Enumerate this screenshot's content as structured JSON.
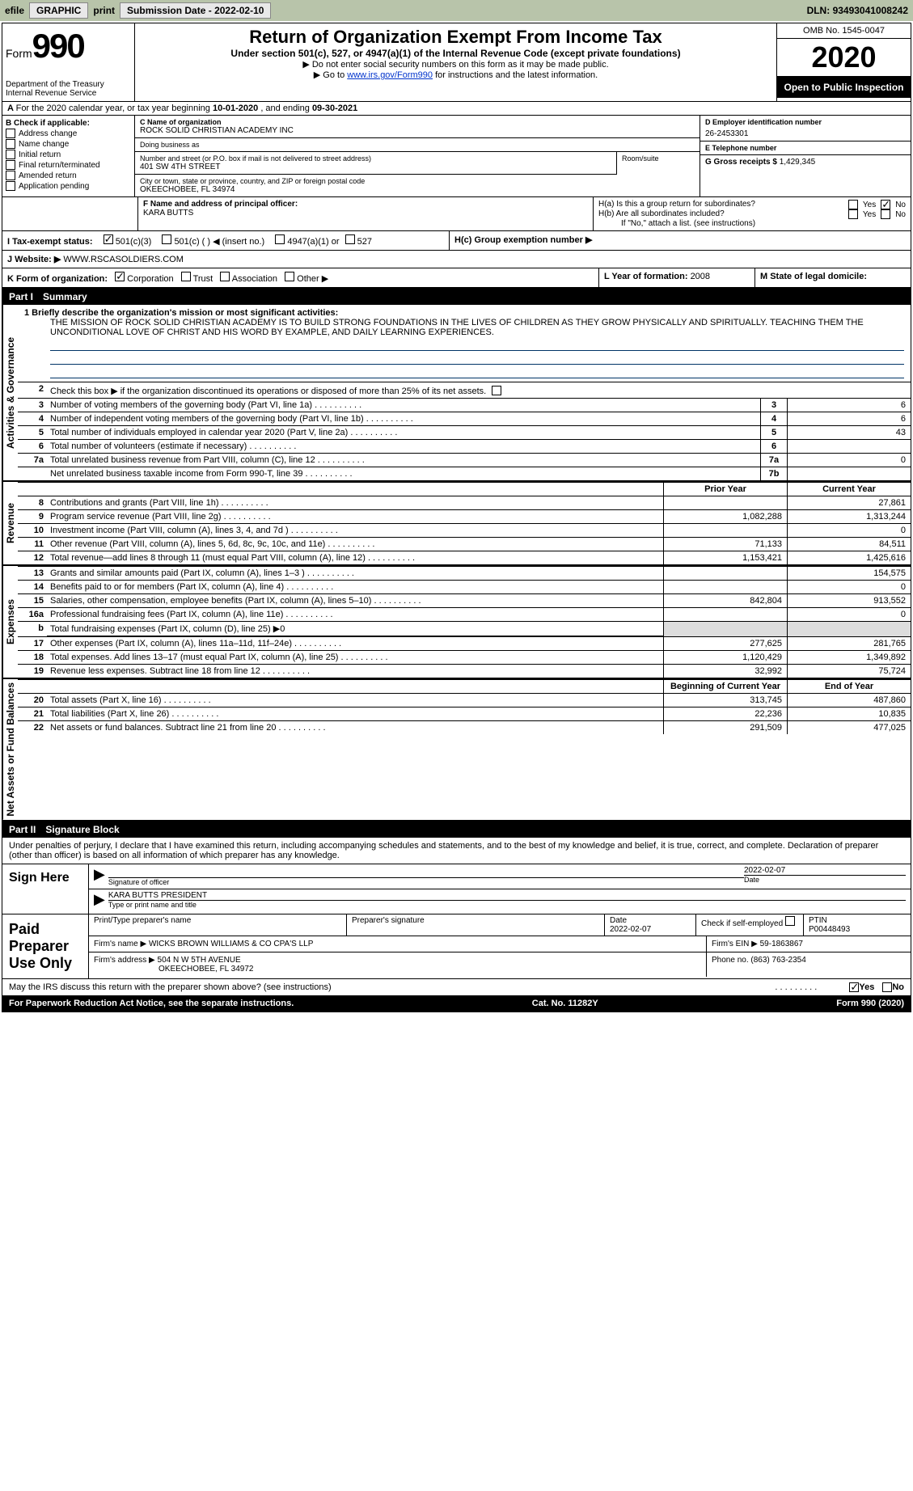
{
  "topbar": {
    "efile": "efile",
    "graphic": "GRAPHIC",
    "print": "print",
    "subdate_label": "Submission Date - ",
    "subdate": "2022-02-10",
    "dln_label": "DLN: ",
    "dln": "93493041008242"
  },
  "header": {
    "form": "Form",
    "num": "990",
    "dept1": "Department of the Treasury",
    "dept2": "Internal Revenue Service",
    "title": "Return of Organization Exempt From Income Tax",
    "sub1": "Under section 501(c), 527, or 4947(a)(1) of the Internal Revenue Code (except private foundations)",
    "sub2": "Do not enter social security numbers on this form as it may be made public.",
    "sub3_pre": "Go to ",
    "sub3_link": "www.irs.gov/Form990",
    "sub3_post": " for instructions and the latest information.",
    "omb": "OMB No. 1545-0047",
    "year": "2020",
    "open": "Open to Public Inspection"
  },
  "sectionA": {
    "text_pre": "For the 2020 calendar year, or tax year beginning ",
    "begin": "10-01-2020",
    "mid": " , and ending ",
    "end": "09-30-2021"
  },
  "boxB": {
    "label": "B Check if applicable:",
    "items": [
      "Address change",
      "Name change",
      "Initial return",
      "Final return/terminated",
      "Amended return",
      "Application pending"
    ]
  },
  "boxC": {
    "name_label": "C Name of organization",
    "name": "ROCK SOLID CHRISTIAN ACADEMY INC",
    "dba_label": "Doing business as",
    "dba": "",
    "addr_label": "Number and street (or P.O. box if mail is not delivered to street address)",
    "addr": "401 SW 4TH STREET",
    "room_label": "Room/suite",
    "city_label": "City or town, state or province, country, and ZIP or foreign postal code",
    "city": "OKEECHOBEE, FL  34974"
  },
  "boxD": {
    "label": "D Employer identification number",
    "val": "26-2453301"
  },
  "boxE": {
    "label": "E Telephone number",
    "val": ""
  },
  "boxG": {
    "label": "G Gross receipts $",
    "val": "1,429,345"
  },
  "boxF": {
    "label": "F  Name and address of principal officer:",
    "name": "KARA BUTTS"
  },
  "boxH": {
    "ha": "H(a)  Is this a group return for subordinates?",
    "hb": "H(b)  Are all subordinates included?",
    "hb_note": "If \"No,\" attach a list. (see instructions)",
    "hc": "H(c)  Group exemption number ▶",
    "yes": "Yes",
    "no": "No",
    "ha_no_checked": true
  },
  "boxI": {
    "label": "I  Tax-exempt status:",
    "c501c3_checked": true,
    "opts": [
      "501(c)(3)",
      "501(c) (  ) ◀ (insert no.)",
      "4947(a)(1) or",
      "527"
    ]
  },
  "boxJ": {
    "label": "J  Website: ▶",
    "val": "WWW.RSCASOLDIERS.COM"
  },
  "boxK": {
    "label": "K Form of organization:",
    "opts": [
      "Corporation",
      "Trust",
      "Association",
      "Other ▶"
    ],
    "corp_checked": true
  },
  "boxL": {
    "label": "L Year of formation: ",
    "val": "2008"
  },
  "boxM": {
    "label": "M State of legal domicile:",
    "val": ""
  },
  "part1": {
    "header": "Part I",
    "title": "Summary",
    "side_ag": "Activities & Governance",
    "side_rev": "Revenue",
    "side_exp": "Expenses",
    "side_net": "Net Assets or Fund Balances",
    "line1_label": "1  Briefly describe the organization's mission or most significant activities:",
    "mission": "THE MISSION OF ROCK SOLID CHRISTIAN ACADEMY IS TO BUILD STRONG FOUNDATIONS IN THE LIVES OF CHILDREN AS THEY GROW PHYSICALLY AND SPIRITUALLY. TEACHING THEM THE UNCONDITIONAL LOVE OF CHRIST AND HIS WORD BY EXAMPLE, AND DAILY LEARNING EXPERIENCES.",
    "line2": "Check this box ▶     if the organization discontinued its operations or disposed of more than 25% of its net assets.",
    "rows_gov": [
      {
        "n": "3",
        "d": "Number of voting members of the governing body (Part VI, line 1a)",
        "box": "3",
        "v": "6"
      },
      {
        "n": "4",
        "d": "Number of independent voting members of the governing body (Part VI, line 1b)",
        "box": "4",
        "v": "6"
      },
      {
        "n": "5",
        "d": "Total number of individuals employed in calendar year 2020 (Part V, line 2a)",
        "box": "5",
        "v": "43"
      },
      {
        "n": "6",
        "d": "Total number of volunteers (estimate if necessary)",
        "box": "6",
        "v": ""
      },
      {
        "n": "7a",
        "d": "Total unrelated business revenue from Part VIII, column (C), line 12",
        "box": "7a",
        "v": "0"
      },
      {
        "n": "",
        "d": "Net unrelated business taxable income from Form 990-T, line 39",
        "box": "7b",
        "v": ""
      }
    ],
    "col_prior_h": "Prior Year",
    "col_curr_h": "Current Year",
    "rows_rev": [
      {
        "n": "8",
        "d": "Contributions and grants (Part VIII, line 1h)",
        "p": "",
        "c": "27,861"
      },
      {
        "n": "9",
        "d": "Program service revenue (Part VIII, line 2g)",
        "p": "1,082,288",
        "c": "1,313,244"
      },
      {
        "n": "10",
        "d": "Investment income (Part VIII, column (A), lines 3, 4, and 7d )",
        "p": "",
        "c": "0"
      },
      {
        "n": "11",
        "d": "Other revenue (Part VIII, column (A), lines 5, 6d, 8c, 9c, 10c, and 11e)",
        "p": "71,133",
        "c": "84,511"
      },
      {
        "n": "12",
        "d": "Total revenue—add lines 8 through 11 (must equal Part VIII, column (A), line 12)",
        "p": "1,153,421",
        "c": "1,425,616"
      }
    ],
    "rows_exp": [
      {
        "n": "13",
        "d": "Grants and similar amounts paid (Part IX, column (A), lines 1–3 )",
        "p": "",
        "c": "154,575"
      },
      {
        "n": "14",
        "d": "Benefits paid to or for members (Part IX, column (A), line 4)",
        "p": "",
        "c": "0"
      },
      {
        "n": "15",
        "d": "Salaries, other compensation, employee benefits (Part IX, column (A), lines 5–10)",
        "p": "842,804",
        "c": "913,552"
      },
      {
        "n": "16a",
        "d": "Professional fundraising fees (Part IX, column (A), line 11e)",
        "p": "",
        "c": "0"
      },
      {
        "n": "b",
        "d": "Total fundraising expenses (Part IX, column (D), line 25) ▶0",
        "p": null,
        "c": null
      },
      {
        "n": "17",
        "d": "Other expenses (Part IX, column (A), lines 11a–11d, 11f–24e)",
        "p": "277,625",
        "c": "281,765"
      },
      {
        "n": "18",
        "d": "Total expenses. Add lines 13–17 (must equal Part IX, column (A), line 25)",
        "p": "1,120,429",
        "c": "1,349,892"
      },
      {
        "n": "19",
        "d": "Revenue less expenses. Subtract line 18 from line 12",
        "p": "32,992",
        "c": "75,724"
      }
    ],
    "col_begin_h": "Beginning of Current Year",
    "col_end_h": "End of Year",
    "rows_net": [
      {
        "n": "20",
        "d": "Total assets (Part X, line 16)",
        "p": "313,745",
        "c": "487,860"
      },
      {
        "n": "21",
        "d": "Total liabilities (Part X, line 26)",
        "p": "22,236",
        "c": "10,835"
      },
      {
        "n": "22",
        "d": "Net assets or fund balances. Subtract line 21 from line 20",
        "p": "291,509",
        "c": "477,025"
      }
    ]
  },
  "part2": {
    "header": "Part II",
    "title": "Signature Block",
    "perjury": "Under penalties of perjury, I declare that I have examined this return, including accompanying schedules and statements, and to the best of my knowledge and belief, it is true, correct, and complete. Declaration of preparer (other than officer) is based on all information of which preparer has any knowledge.",
    "sign_here": "Sign Here",
    "sig_officer_label": "Signature of officer",
    "sig_date": "2022-02-07",
    "date_label": "Date",
    "print_name": "KARA BUTTS  PRESIDENT",
    "print_name_label": "Type or print name and title",
    "paid": "Paid Preparer Use Only",
    "prep_name_label": "Print/Type preparer's name",
    "prep_sig_label": "Preparer's signature",
    "prep_date_label": "Date",
    "prep_date": "2022-02-07",
    "self_emp": "Check       if self-employed",
    "ptin_label": "PTIN",
    "ptin": "P00448493",
    "firm_name_label": "Firm's name   ▶",
    "firm_name": "WICKS BROWN WILLIAMS & CO CPA'S LLP",
    "firm_ein_label": "Firm's EIN ▶",
    "firm_ein": "59-1863867",
    "firm_addr_label": "Firm's address ▶",
    "firm_addr1": "504 N W 5TH AVENUE",
    "firm_addr2": "OKEECHOBEE, FL  34972",
    "firm_phone_label": "Phone no.",
    "firm_phone": "(863) 763-2354",
    "discuss": "May the IRS discuss this return with the preparer shown above? (see instructions)",
    "discuss_yes_checked": true
  },
  "footer": {
    "pra": "For Paperwork Reduction Act Notice, see the separate instructions.",
    "cat": "Cat. No. 11282Y",
    "form": "Form 990 (2020)"
  }
}
